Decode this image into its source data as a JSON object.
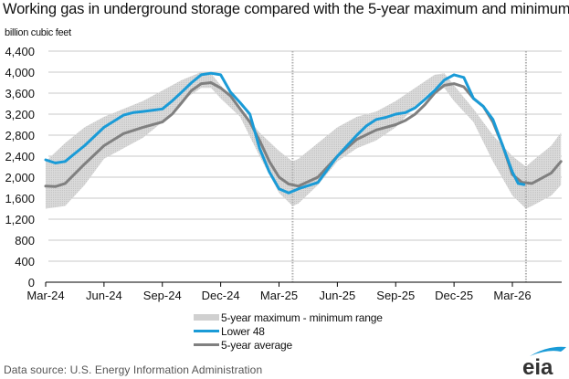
{
  "chart_data": {
    "type": "area",
    "title": "Working gas in underground  storage compared with the 5-year maximum and minimum",
    "ylabel": "billion cubic feet",
    "xlabel": "",
    "ylim": [
      0,
      4400
    ],
    "yticks": [
      0,
      400,
      800,
      1200,
      1600,
      2000,
      2400,
      2800,
      3200,
      3600,
      4000,
      4400
    ],
    "ytick_labels": [
      "0",
      "400",
      "800",
      "1,200",
      "1,600",
      "2,000",
      "2,400",
      "2,800",
      "3,200",
      "3,600",
      "4,000",
      "4,400"
    ],
    "xtick_labels": [
      "Mar-24",
      "Jun-24",
      "Sep-24",
      "Dec-24",
      "Mar-25",
      "Jun-25",
      "Sep-25",
      "Dec-25",
      "Mar-26"
    ],
    "x_unit": "months since Mar-24",
    "xlim": [
      0,
      26.5
    ],
    "grid": true,
    "vertical_markers": [
      12.7,
      24.7
    ],
    "legend_position": "bottom-center",
    "series": [
      {
        "name": "5-year maximum - minimum range",
        "kind": "band",
        "color": "#d3d3d3",
        "x": [
          0,
          1,
          2,
          3,
          4,
          5,
          6,
          7,
          8,
          8.5,
          9,
          10,
          11,
          12,
          12.7,
          13,
          14,
          15,
          16,
          17,
          18,
          19,
          20,
          20.5,
          21,
          22,
          23,
          24,
          24.7,
          25,
          26,
          26.5
        ],
        "max": [
          2300,
          2650,
          2950,
          3150,
          3300,
          3450,
          3650,
          3850,
          4000,
          3980,
          3750,
          3300,
          2850,
          2500,
          2300,
          2350,
          2650,
          2950,
          3150,
          3250,
          3450,
          3700,
          3950,
          3980,
          3750,
          3300,
          2800,
          2400,
          2200,
          2300,
          2600,
          2850
        ],
        "min": [
          1400,
          1450,
          1850,
          2350,
          2550,
          2750,
          3050,
          3450,
          3700,
          3700,
          3500,
          3150,
          2400,
          1700,
          1450,
          1500,
          1850,
          2300,
          2550,
          2700,
          2950,
          3350,
          3700,
          3700,
          3450,
          3050,
          2300,
          1650,
          1400,
          1450,
          1650,
          1850
        ]
      },
      {
        "name": "Lower 48",
        "kind": "line",
        "color": "#1a9bd7",
        "x": [
          0,
          0.5,
          1,
          1.5,
          2,
          3,
          4,
          4.5,
          5,
          6,
          6.5,
          7,
          7.5,
          8,
          8.5,
          9,
          9.5,
          10,
          10.5,
          11,
          11.5,
          12,
          12.5,
          13,
          14,
          15,
          16,
          16.5,
          17,
          17.5,
          18,
          18.5,
          19,
          19.5,
          20,
          20.5,
          21,
          21.5,
          22,
          22.5,
          23,
          23.5,
          24,
          24.3,
          24.6
        ],
        "values": [
          2330,
          2270,
          2300,
          2450,
          2600,
          2950,
          3180,
          3230,
          3250,
          3300,
          3450,
          3620,
          3800,
          3950,
          3980,
          3950,
          3620,
          3420,
          3200,
          2550,
          2100,
          1780,
          1700,
          1780,
          1900,
          2400,
          2800,
          2980,
          3100,
          3140,
          3200,
          3230,
          3320,
          3480,
          3650,
          3850,
          3950,
          3900,
          3500,
          3350,
          3100,
          2600,
          2100,
          1880,
          1860
        ]
      },
      {
        "name": "5-year average",
        "kind": "line",
        "color": "#808080",
        "x": [
          0,
          0.5,
          1,
          2,
          3,
          4,
          5,
          6,
          6.5,
          7,
          7.5,
          8,
          8.5,
          9,
          9.5,
          10,
          10.5,
          11,
          11.5,
          12,
          12.5,
          13,
          14,
          15,
          16,
          17,
          18,
          18.5,
          19,
          19.5,
          20,
          20.5,
          21,
          21.5,
          22,
          22.5,
          23,
          23.5,
          24,
          24.5,
          25,
          26,
          26.5
        ],
        "values": [
          1830,
          1820,
          1880,
          2250,
          2600,
          2830,
          2950,
          3050,
          3200,
          3420,
          3650,
          3780,
          3800,
          3700,
          3550,
          3300,
          3050,
          2700,
          2300,
          2000,
          1870,
          1830,
          2000,
          2400,
          2720,
          2900,
          3000,
          3080,
          3200,
          3380,
          3600,
          3750,
          3780,
          3720,
          3500,
          3350,
          3050,
          2600,
          2050,
          1900,
          1880,
          2080,
          2300
        ]
      }
    ]
  },
  "legend": {
    "band_label": "5-year maximum - minimum range",
    "lower48_label": "Lower 48",
    "avg_label": "5-year average"
  },
  "footer": {
    "source": "Data source:  U.S. Energy Information Administration",
    "logo_text": "eia"
  }
}
